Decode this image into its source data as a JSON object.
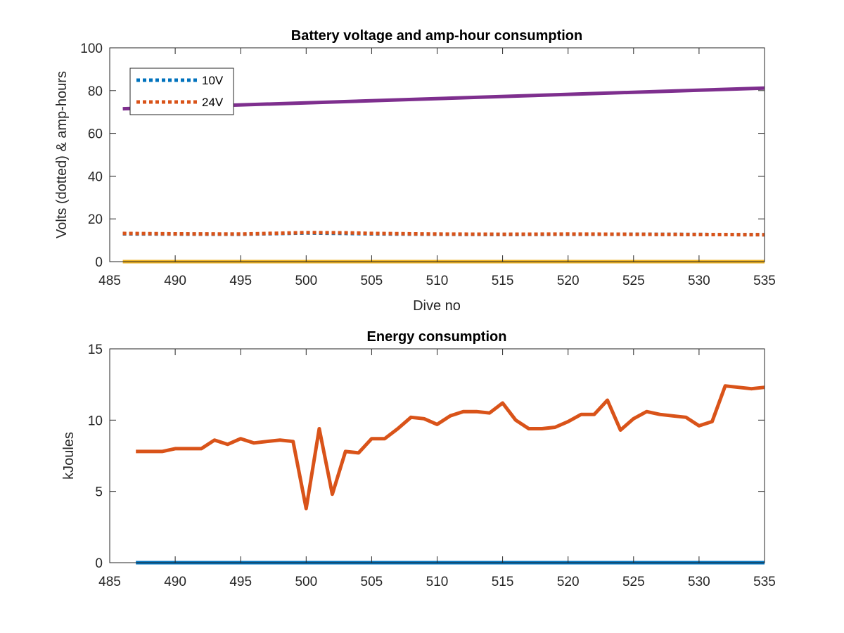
{
  "chart_data": [
    {
      "type": "line",
      "title": "Battery voltage and amp-hour consumption",
      "xlabel": "Dive no",
      "ylabel": "Volts (dotted) & amp-hours",
      "xlim": [
        485,
        535
      ],
      "ylim": [
        0,
        100
      ],
      "xticks": [
        485,
        490,
        495,
        500,
        505,
        510,
        515,
        520,
        525,
        530,
        535
      ],
      "yticks": [
        0,
        20,
        40,
        60,
        80,
        100
      ],
      "grid": false,
      "legend_position": "top-left",
      "series": [
        {
          "name": "10V",
          "style": "dotted",
          "color": "#0072BD",
          "in_legend": true,
          "x": [
            486,
            490,
            495,
            500,
            503,
            505,
            510,
            515,
            520,
            525,
            530,
            535
          ],
          "y": [
            13.0,
            12.9,
            12.8,
            13.4,
            13.2,
            13.0,
            12.8,
            12.7,
            12.8,
            12.8,
            12.7,
            12.6
          ]
        },
        {
          "name": "24V",
          "style": "dotted",
          "color": "#D95319",
          "in_legend": true,
          "x": [
            486,
            490,
            495,
            500,
            503,
            505,
            510,
            515,
            520,
            525,
            530,
            535
          ],
          "y": [
            13.2,
            13.0,
            12.9,
            13.6,
            13.5,
            13.2,
            12.9,
            12.8,
            12.9,
            12.8,
            12.7,
            12.6
          ]
        },
        {
          "style": "solid",
          "color": "#EDB120",
          "in_legend": false,
          "x": [
            486,
            535
          ],
          "y": [
            0,
            0
          ]
        },
        {
          "style": "solid",
          "color": "#7E2F8E",
          "in_legend": false,
          "x": [
            486,
            535
          ],
          "y": [
            71.5,
            81.2
          ]
        }
      ]
    },
    {
      "type": "line",
      "title": "Energy consumption",
      "xlabel": "",
      "ylabel": "kJoules",
      "xlim": [
        485,
        535
      ],
      "ylim": [
        0,
        15
      ],
      "xticks": [
        485,
        490,
        495,
        500,
        505,
        510,
        515,
        520,
        525,
        530,
        535
      ],
      "yticks": [
        0,
        5,
        10,
        15
      ],
      "grid": false,
      "series": [
        {
          "style": "solid",
          "color": "#0072BD",
          "x": [
            487,
            535
          ],
          "y": [
            0,
            0
          ]
        },
        {
          "style": "solid",
          "color": "#D95319",
          "x": [
            487,
            488,
            489,
            490,
            491,
            492,
            493,
            494,
            495,
            496,
            497,
            498,
            499,
            500,
            501,
            502,
            503,
            504,
            505,
            506,
            507,
            508,
            509,
            510,
            511,
            512,
            513,
            514,
            515,
            516,
            517,
            518,
            519,
            520,
            521,
            522,
            523,
            524,
            525,
            526,
            527,
            528,
            529,
            530,
            531,
            532,
            533,
            534,
            535
          ],
          "y": [
            7.8,
            7.8,
            7.8,
            8.0,
            8.0,
            8.0,
            8.6,
            8.3,
            8.7,
            8.4,
            8.5,
            8.6,
            8.5,
            3.8,
            9.4,
            4.8,
            7.8,
            7.7,
            8.7,
            8.7,
            9.4,
            10.2,
            10.1,
            9.7,
            10.3,
            10.6,
            10.6,
            10.5,
            11.2,
            10.0,
            9.4,
            9.4,
            9.5,
            9.9,
            10.4,
            10.4,
            11.4,
            9.3,
            10.1,
            10.6,
            10.4,
            10.3,
            10.2,
            9.6,
            9.9,
            12.4,
            12.3,
            12.2,
            12.3
          ]
        }
      ]
    }
  ]
}
